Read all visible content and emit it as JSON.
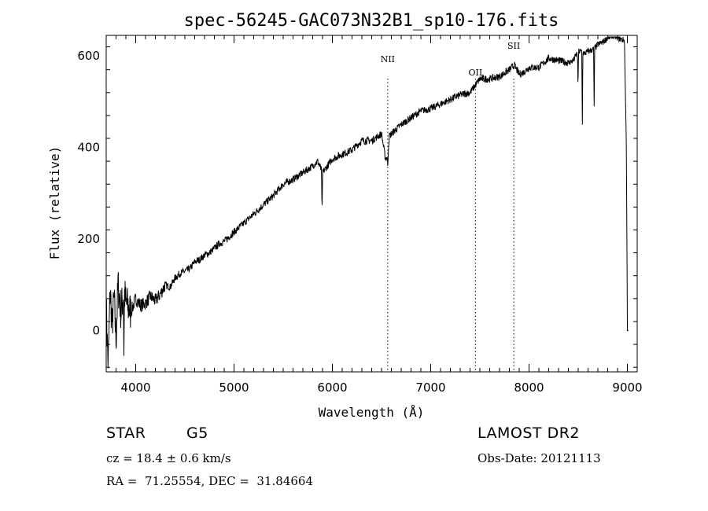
{
  "chart_data": {
    "type": "line",
    "title": "spec-56245-GAC073N32B1_sp10-176.fits",
    "xlabel": "Wavelength (Å)",
    "ylabel": "Flux (relative)",
    "xlim": [
      3700,
      9100
    ],
    "ylim": [
      -90,
      645
    ],
    "x_ticks": [
      4000,
      5000,
      6000,
      7000,
      8000,
      9000
    ],
    "y_ticks": [
      0,
      200,
      400,
      600
    ],
    "grid": false,
    "series": [
      {
        "x": [
          3700,
          3720,
          3740,
          3760,
          3780,
          3800,
          3820,
          3850,
          3880,
          3900,
          3950,
          4000,
          4050,
          4100,
          4150,
          4200,
          4250,
          4300,
          4350,
          4400,
          4450,
          4500,
          4550,
          4600,
          4650,
          4700,
          4750,
          4800,
          4850,
          4900,
          4950,
          5000,
          5100,
          5200,
          5300,
          5400,
          5500,
          5600,
          5700,
          5800,
          5850,
          5900,
          5950,
          6000,
          6100,
          6200,
          6300,
          6400,
          6500,
          6540,
          6560,
          6580,
          6600,
          6700,
          6800,
          6900,
          7000,
          7100,
          7200,
          7300,
          7400,
          7500,
          7600,
          7700,
          7800,
          7850,
          7900,
          7950,
          8000,
          8100,
          8200,
          8300,
          8400,
          8450,
          8498,
          8520,
          8542,
          8560,
          8600,
          8662,
          8680,
          8700,
          8750,
          8800,
          8850,
          8900,
          8950,
          8970,
          8990,
          9000,
          9010
        ],
        "y": [
          50,
          -80,
          90,
          10,
          70,
          -20,
          100,
          40,
          90,
          60,
          40,
          70,
          55,
          60,
          75,
          65,
          80,
          100,
          95,
          115,
          125,
          130,
          135,
          150,
          155,
          165,
          170,
          180,
          190,
          195,
          205,
          215,
          235,
          255,
          275,
          295,
          320,
          330,
          345,
          360,
          370,
          345,
          360,
          375,
          385,
          395,
          415,
          415,
          430,
          375,
          380,
          425,
          430,
          450,
          465,
          480,
          485,
          495,
          505,
          515,
          520,
          550,
          550,
          555,
          570,
          580,
          560,
          565,
          575,
          575,
          595,
          590,
          585,
          590,
          610,
          610,
          610,
          605,
          610,
          615,
          620,
          625,
          630,
          640,
          645,
          640,
          635,
          635,
          400,
          0,
          0
        ],
        "absorption_dips": [
          {
            "x": 3880,
            "y": -55
          },
          {
            "x": 5895,
            "y": 260
          },
          {
            "x": 6563,
            "y": 355
          },
          {
            "x": 8498,
            "y": 530
          },
          {
            "x": 8542,
            "y": 450
          },
          {
            "x": 8662,
            "y": 490
          }
        ]
      }
    ],
    "line_markers": [
      {
        "label": "NII",
        "x": 6563
      },
      {
        "label": "OII",
        "x": 7455
      },
      {
        "label": "SII",
        "x": 7845
      }
    ]
  },
  "info": {
    "object_class": "STAR",
    "subclass": "G5",
    "survey": "LAMOST DR2",
    "redshift": "cz = 18.4 ± 0.6 km/s",
    "obs_date": "Obs-Date: 20121113",
    "coords": "RA =  71.25554, DEC =  31.84664"
  }
}
